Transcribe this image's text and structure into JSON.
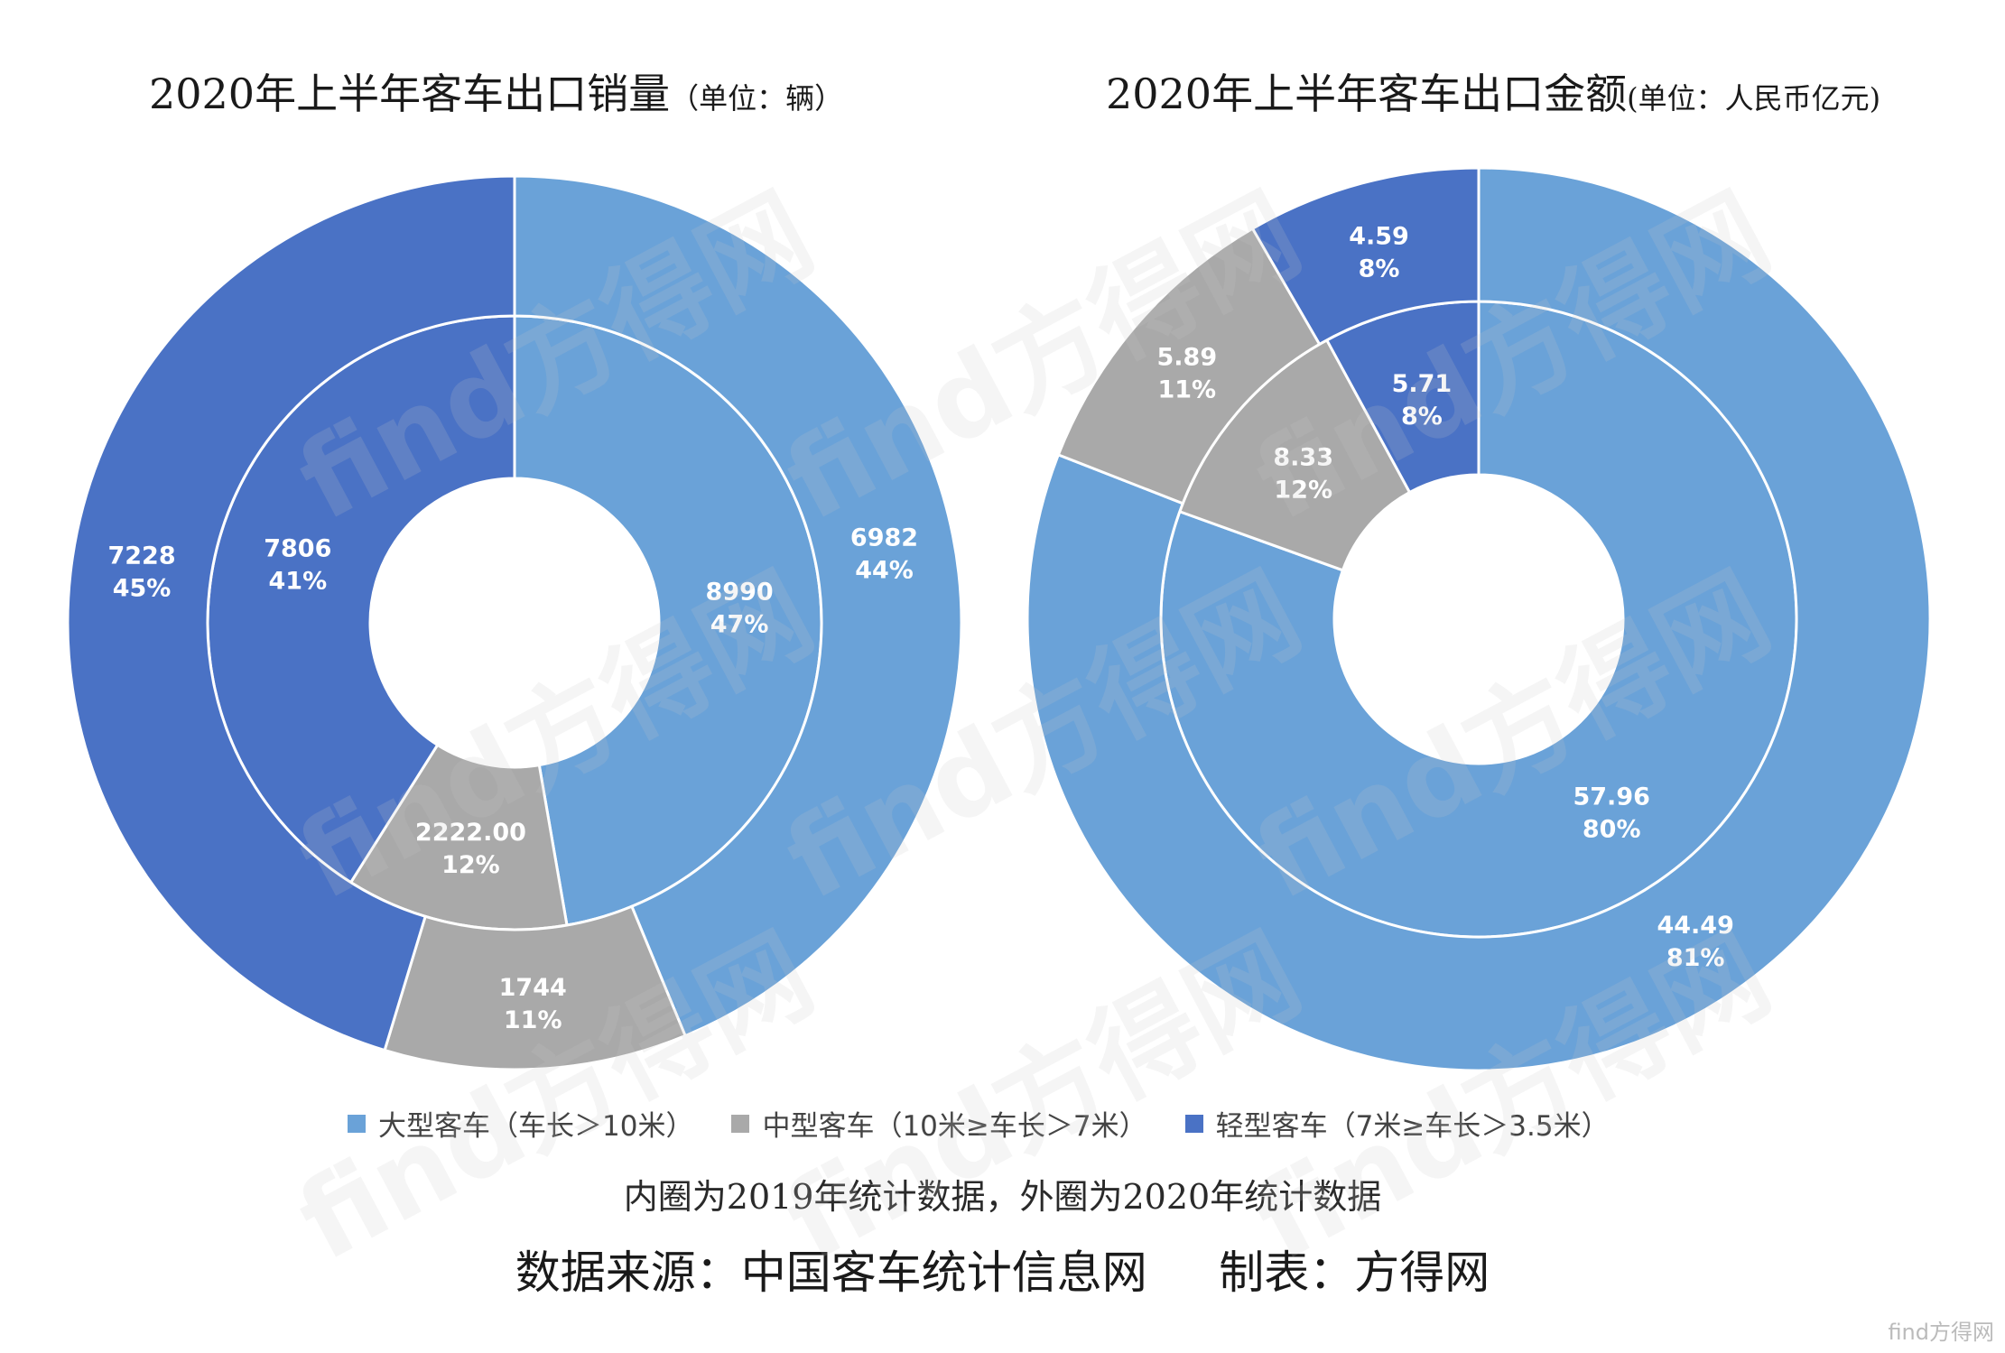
{
  "titles": {
    "left_main": "2020年上半年客车出口销量",
    "left_unit": "（单位：辆）",
    "right_main": "2020年上半年客车出口金额",
    "right_unit": "(单位：人民币亿元)"
  },
  "legend": [
    {
      "label": "大型客车（车长＞10米）",
      "color": "#6aa2d8"
    },
    {
      "label": "中型客车（10米≥车长＞7米）",
      "color": "#a9a9a9"
    },
    {
      "label": "轻型客车（7米≥车长＞3.5米）",
      "color": "#4a72c5"
    }
  ],
  "note": "内圈为2019年统计数据，外圈为2020年统计数据",
  "source": "数据来源：中国客车统计信息网     制表：方得网",
  "watermark_text": "find方得网",
  "corner_mark": "find方得网",
  "chart_data": [
    {
      "type": "pie",
      "variant": "nested-donut",
      "title": "2020年上半年客车出口销量（单位：辆）",
      "categories": [
        "大型客车（车长＞10米）",
        "中型客车（10米≥车长＞7米）",
        "轻型客车（7米≥车长＞3.5米）"
      ],
      "colors": [
        "#6aa2d8",
        "#a9a9a9",
        "#4a72c5"
      ],
      "series": [
        {
          "ring": "inner",
          "values": [
            8990,
            2222.0,
            7806
          ],
          "value_labels": [
            "8990",
            "2222.00",
            "7806"
          ],
          "percents": [
            "47%",
            "12%",
            "41%"
          ]
        },
        {
          "ring": "outer",
          "values": [
            6982,
            1744,
            7228
          ],
          "value_labels": [
            "6982",
            "1744",
            "7228"
          ],
          "percents": [
            "44%",
            "11%",
            "45%"
          ]
        }
      ]
    },
    {
      "type": "pie",
      "variant": "nested-donut",
      "title": "2020年上半年客车出口金额(单位：人民币亿元)",
      "categories": [
        "大型客车（车长＞10米）",
        "中型客车（10米≥车长＞7米）",
        "轻型客车（7米≥车长＞3.5米）"
      ],
      "colors": [
        "#6aa2d8",
        "#a9a9a9",
        "#4a72c5"
      ],
      "series": [
        {
          "ring": "inner",
          "values": [
            57.96,
            8.33,
            5.71
          ],
          "value_labels": [
            "57.96",
            "8.33",
            "5.71"
          ],
          "percents": [
            "80%",
            "12%",
            "8%"
          ]
        },
        {
          "ring": "outer",
          "values": [
            44.49,
            5.89,
            4.59
          ],
          "value_labels": [
            "44.49",
            "5.89",
            "4.59"
          ],
          "percents": [
            "81%",
            "11%",
            "8%"
          ]
        }
      ]
    }
  ]
}
